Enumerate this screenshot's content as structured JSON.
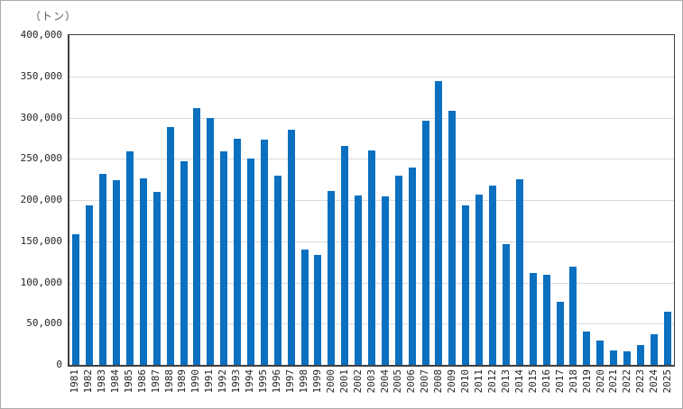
{
  "figure": {
    "unit_label": "（トン）",
    "colors": {
      "bar": "#0b70c0",
      "gridline": "#d9d9d9",
      "axis": "#404040",
      "text": "#262626",
      "outer_border": "#ababab"
    }
  },
  "chart_data": {
    "type": "bar",
    "title": "",
    "xlabel": "",
    "ylabel": "（トン）",
    "ylim": [
      0,
      400000
    ],
    "ytick_interval": 50000,
    "ytick_labels": [
      "400,000",
      "350,000",
      "300,000",
      "250,000",
      "200,000",
      "150,000",
      "100,000",
      "50,000",
      "0"
    ],
    "grid": true,
    "legend": false,
    "categories": [
      "1981",
      "1982",
      "1983",
      "1984",
      "1985",
      "1986",
      "1987",
      "1988",
      "1989",
      "1990",
      "1991",
      "1992",
      "1993",
      "1994",
      "1995",
      "1996",
      "1997",
      "1998",
      "1999",
      "2000",
      "2001",
      "2002",
      "2003",
      "2004",
      "2005",
      "2006",
      "2007",
      "2008",
      "2009",
      "2010",
      "2011",
      "2012",
      "2013",
      "2014",
      "2015",
      "2016",
      "2017",
      "2018",
      "2019",
      "2020",
      "2021",
      "2022",
      "2023",
      "2024",
      "2025"
    ],
    "values": [
      158000,
      193000,
      232000,
      224000,
      259000,
      226000,
      210000,
      288000,
      247000,
      311000,
      299000,
      259000,
      274000,
      250000,
      273000,
      230000,
      285000,
      140000,
      133000,
      211000,
      266000,
      205000,
      260000,
      204000,
      229000,
      239000,
      296000,
      344000,
      308000,
      193000,
      207000,
      218000,
      147000,
      225000,
      111000,
      109000,
      77000,
      119000,
      40000,
      29000,
      17000,
      16000,
      24000,
      37000,
      65000
    ]
  }
}
